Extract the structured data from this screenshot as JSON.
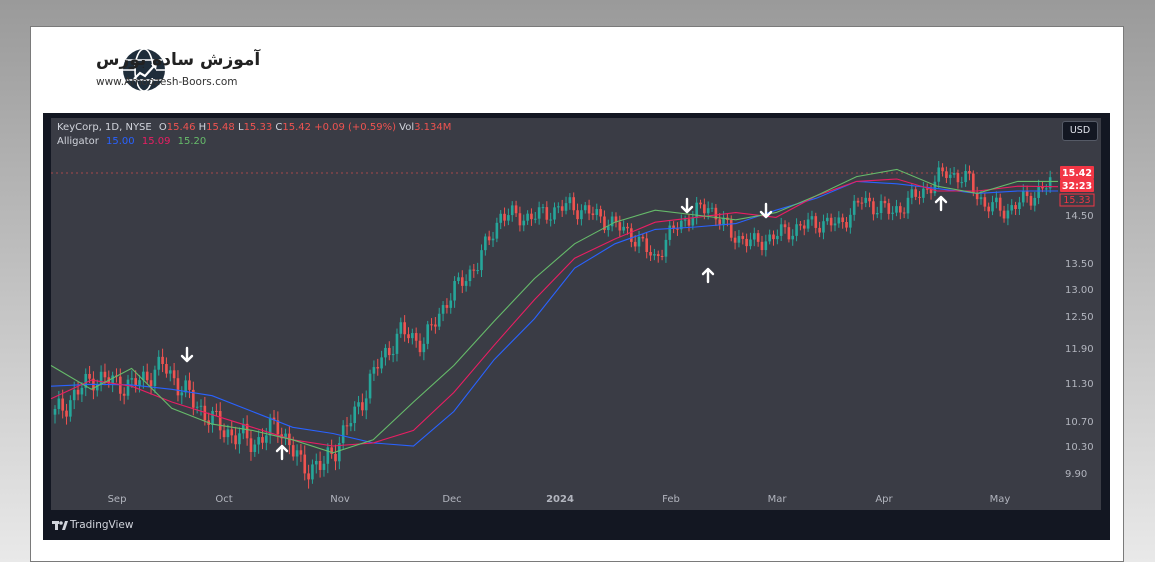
{
  "site": {
    "title_fa": "آموزش ساده بورس",
    "url": "www.Amoozesh-Boors.com"
  },
  "chart_header": {
    "symbol": "KeyCorp, 1D, NYSE",
    "o_label": "O",
    "o_value": "15.46",
    "h_label": "H",
    "h_value": "15.48",
    "l_label": "L",
    "l_value": "15.33",
    "c_label": "C",
    "c_value": "15.42",
    "change": "+0.09 (+0.59%)",
    "vol_label": "Vol",
    "vol_value": "3.134M",
    "indicator_name": "Alligator",
    "jaw": "15.00",
    "teeth": "15.09",
    "lips": "15.20"
  },
  "currency": "USD",
  "price_labels": {
    "last": "15.42",
    "countdown": "32:23",
    "alligator_line": "15.33"
  },
  "brand": "TradingView",
  "colors": {
    "bg": "#131722",
    "up": "#26a69a",
    "down": "#ef5350",
    "jaw": "#2962ff",
    "teeth": "#e91e63",
    "lips": "#66bb6a",
    "axis_text": "#b2b5be"
  },
  "chart_data": {
    "type": "candlestick",
    "y_ticks": [
      "14.50",
      "13.50",
      "13.00",
      "12.50",
      "11.90",
      "11.30",
      "10.70",
      "10.30",
      "9.90"
    ],
    "x_ticks": [
      "Sep",
      "Oct",
      "Nov",
      "Dec",
      "2024",
      "Feb",
      "Mar",
      "Apr",
      "May"
    ],
    "series": [
      {
        "name": "Jaw",
        "color": "#2962ff",
        "values": [
          11.25,
          11.28,
          11.27,
          11.2,
          11.1,
          10.85,
          10.6,
          10.5,
          10.35,
          10.3,
          10.85,
          11.7,
          12.45,
          13.4,
          13.9,
          14.2,
          14.25,
          14.32,
          14.6,
          14.85,
          15.2,
          15.15,
          15.05,
          14.95,
          15.0,
          15.0
        ]
      },
      {
        "name": "Teeth",
        "color": "#e91e63",
        "values": [
          11.05,
          11.35,
          11.25,
          11.0,
          10.8,
          10.6,
          10.4,
          10.3,
          10.35,
          10.55,
          11.15,
          11.95,
          12.8,
          13.6,
          14.0,
          14.35,
          14.45,
          14.55,
          14.45,
          14.9,
          15.2,
          15.25,
          15.0,
          15.0,
          15.1,
          15.09
        ]
      },
      {
        "name": "Lips",
        "color": "#66bb6a",
        "values": [
          11.6,
          11.2,
          11.55,
          10.9,
          10.65,
          10.55,
          10.4,
          10.2,
          10.4,
          11.0,
          11.6,
          12.4,
          13.2,
          13.9,
          14.35,
          14.6,
          14.5,
          14.4,
          14.55,
          14.9,
          15.3,
          15.45,
          15.1,
          14.95,
          15.2,
          15.2
        ]
      }
    ]
  }
}
